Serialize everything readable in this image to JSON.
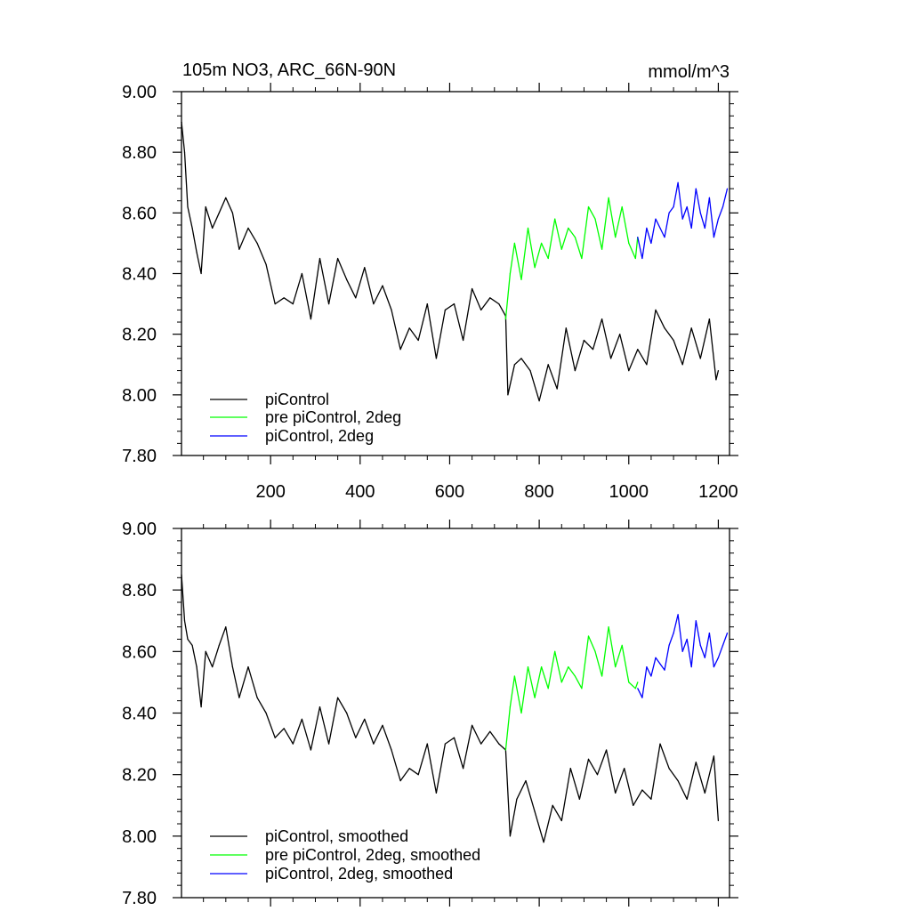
{
  "colors": {
    "background": "#ffffff",
    "axis": "#000000",
    "piControl": "#000000",
    "pre_piControl_2deg": "#00ff00",
    "piControl_2deg": "#0000ff"
  },
  "chart_data": [
    {
      "type": "line",
      "title_left": "105m NO3, ARC_66N-90N",
      "title_right": "mmol/m^3",
      "xlabel": "",
      "ylabel": "",
      "xlim": [
        1,
        1225
      ],
      "ylim": [
        7.8,
        9.0
      ],
      "xticks": [
        200,
        400,
        600,
        800,
        1000,
        1200
      ],
      "xtick_labels": [
        "200",
        "400",
        "600",
        "800",
        "1000",
        "1200"
      ],
      "yticks": [
        7.8,
        8.0,
        8.2,
        8.4,
        8.6,
        8.8,
        9.0
      ],
      "ytick_labels": [
        "7.80",
        "8.00",
        "8.20",
        "8.40",
        "8.60",
        "8.80",
        "9.00"
      ],
      "grid": false,
      "legend_position": "bottom-left",
      "series": [
        {
          "name": "piControl",
          "color": "#000000",
          "x": [
            1,
            8,
            15,
            25,
            35,
            45,
            55,
            70,
            85,
            100,
            115,
            130,
            150,
            170,
            190,
            210,
            230,
            250,
            270,
            290,
            310,
            330,
            350,
            370,
            390,
            410,
            430,
            450,
            470,
            490,
            510,
            530,
            550,
            570,
            590,
            610,
            630,
            650,
            670,
            690,
            710,
            725,
            730,
            745,
            760,
            780,
            800,
            820,
            840,
            860,
            880,
            900,
            920,
            940,
            960,
            980,
            1000,
            1020,
            1040,
            1060,
            1080,
            1100,
            1120,
            1140,
            1160,
            1180,
            1195,
            1200
          ],
          "y": [
            8.9,
            8.8,
            8.62,
            8.55,
            8.47,
            8.4,
            8.62,
            8.55,
            8.6,
            8.65,
            8.6,
            8.48,
            8.55,
            8.5,
            8.43,
            8.3,
            8.32,
            8.3,
            8.4,
            8.25,
            8.45,
            8.3,
            8.45,
            8.38,
            8.32,
            8.42,
            8.3,
            8.36,
            8.28,
            8.15,
            8.22,
            8.18,
            8.3,
            8.12,
            8.28,
            8.3,
            8.18,
            8.35,
            8.28,
            8.32,
            8.3,
            8.26,
            8.0,
            8.1,
            8.12,
            8.08,
            7.98,
            8.1,
            8.02,
            8.22,
            8.08,
            8.18,
            8.15,
            8.25,
            8.12,
            8.2,
            8.08,
            8.15,
            8.1,
            8.28,
            8.22,
            8.18,
            8.1,
            8.22,
            8.12,
            8.25,
            8.05,
            8.08
          ]
        },
        {
          "name": "pre piControl, 2deg",
          "color": "#00ff00",
          "x": [
            725,
            735,
            745,
            760,
            775,
            790,
            805,
            820,
            835,
            850,
            865,
            880,
            895,
            910,
            925,
            940,
            955,
            970,
            985,
            1000,
            1015,
            1020
          ],
          "y": [
            8.25,
            8.4,
            8.5,
            8.38,
            8.55,
            8.42,
            8.5,
            8.45,
            8.58,
            8.48,
            8.55,
            8.52,
            8.45,
            8.62,
            8.58,
            8.48,
            8.65,
            8.52,
            8.62,
            8.5,
            8.45,
            8.52
          ]
        },
        {
          "name": "piControl, 2deg",
          "color": "#0000ff",
          "x": [
            1020,
            1030,
            1040,
            1050,
            1060,
            1070,
            1080,
            1090,
            1100,
            1110,
            1120,
            1130,
            1140,
            1150,
            1160,
            1170,
            1180,
            1190,
            1200,
            1210,
            1220
          ],
          "y": [
            8.52,
            8.45,
            8.55,
            8.5,
            8.58,
            8.55,
            8.52,
            8.6,
            8.62,
            8.7,
            8.58,
            8.62,
            8.55,
            8.68,
            8.6,
            8.55,
            8.65,
            8.52,
            8.58,
            8.62,
            8.68
          ]
        }
      ]
    },
    {
      "type": "line",
      "xlabel": "",
      "ylabel": "",
      "xlim": [
        1,
        1225
      ],
      "ylim": [
        7.8,
        9.0
      ],
      "xticks": [
        200,
        400,
        600,
        800,
        1000,
        1200
      ],
      "yticks": [
        7.8,
        8.0,
        8.2,
        8.4,
        8.6,
        8.8,
        9.0
      ],
      "ytick_labels": [
        "7.80",
        "8.00",
        "8.20",
        "8.40",
        "8.60",
        "8.80",
        "9.00"
      ],
      "grid": false,
      "legend_position": "bottom-left",
      "series": [
        {
          "name": "piControl, smoothed",
          "color": "#000000",
          "x": [
            1,
            8,
            15,
            25,
            35,
            45,
            55,
            70,
            85,
            100,
            115,
            130,
            150,
            170,
            190,
            210,
            230,
            250,
            270,
            290,
            310,
            330,
            350,
            370,
            390,
            410,
            430,
            450,
            470,
            490,
            510,
            530,
            550,
            570,
            590,
            610,
            630,
            650,
            670,
            690,
            710,
            725,
            735,
            750,
            770,
            790,
            810,
            830,
            850,
            870,
            890,
            910,
            930,
            950,
            970,
            990,
            1010,
            1030,
            1050,
            1070,
            1090,
            1110,
            1130,
            1150,
            1170,
            1190,
            1200
          ],
          "y": [
            8.85,
            8.7,
            8.64,
            8.62,
            8.55,
            8.42,
            8.6,
            8.55,
            8.62,
            8.68,
            8.55,
            8.45,
            8.55,
            8.45,
            8.4,
            8.32,
            8.35,
            8.3,
            8.38,
            8.28,
            8.42,
            8.3,
            8.45,
            8.4,
            8.32,
            8.38,
            8.3,
            8.36,
            8.28,
            8.18,
            8.22,
            8.2,
            8.3,
            8.14,
            8.3,
            8.32,
            8.22,
            8.36,
            8.3,
            8.34,
            8.3,
            8.28,
            8.0,
            8.12,
            8.18,
            8.08,
            7.98,
            8.1,
            8.05,
            8.22,
            8.12,
            8.25,
            8.2,
            8.28,
            8.14,
            8.22,
            8.1,
            8.15,
            8.12,
            8.3,
            8.22,
            8.18,
            8.12,
            8.24,
            8.14,
            8.26,
            8.05
          ]
        },
        {
          "name": "pre piControl, 2deg, smoothed",
          "color": "#00ff00",
          "x": [
            725,
            735,
            745,
            760,
            775,
            790,
            805,
            820,
            835,
            850,
            865,
            880,
            895,
            910,
            925,
            940,
            955,
            970,
            985,
            1000,
            1015,
            1020
          ],
          "y": [
            8.28,
            8.42,
            8.52,
            8.4,
            8.55,
            8.45,
            8.55,
            8.48,
            8.6,
            8.5,
            8.55,
            8.52,
            8.48,
            8.65,
            8.6,
            8.52,
            8.68,
            8.55,
            8.62,
            8.5,
            8.48,
            8.5
          ]
        },
        {
          "name": "piControl, 2deg, smoothed",
          "color": "#0000ff",
          "x": [
            1020,
            1030,
            1040,
            1050,
            1060,
            1070,
            1080,
            1090,
            1100,
            1110,
            1120,
            1130,
            1140,
            1150,
            1160,
            1170,
            1180,
            1190,
            1200,
            1210,
            1220
          ],
          "y": [
            8.48,
            8.45,
            8.55,
            8.52,
            8.58,
            8.56,
            8.54,
            8.62,
            8.66,
            8.72,
            8.6,
            8.64,
            8.55,
            8.7,
            8.62,
            8.58,
            8.66,
            8.55,
            8.58,
            8.62,
            8.66
          ]
        }
      ]
    }
  ]
}
